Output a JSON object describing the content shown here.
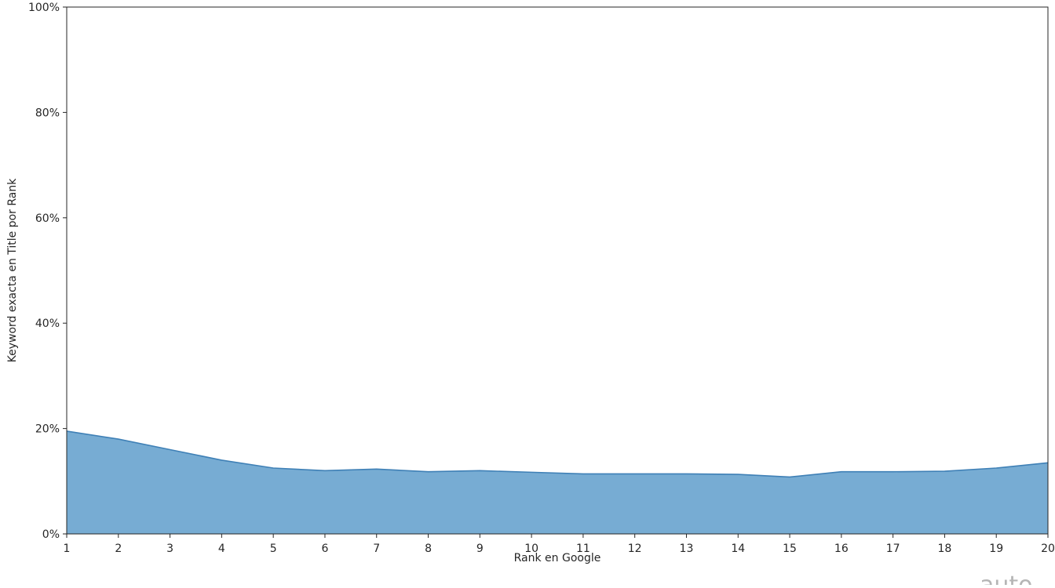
{
  "chart_data": {
    "type": "area",
    "title": "",
    "xlabel": "Rank en Google",
    "ylabel": "Keyword exacta en Title por Rank",
    "x": [
      1,
      2,
      3,
      4,
      5,
      6,
      7,
      8,
      9,
      10,
      11,
      12,
      13,
      14,
      15,
      16,
      17,
      18,
      19,
      20
    ],
    "series": [
      {
        "values": [
          19.5,
          18.0,
          16.0,
          14.0,
          12.5,
          12.0,
          12.3,
          11.8,
          12.0,
          11.7,
          11.4,
          11.4,
          11.4,
          11.3,
          10.8,
          11.8,
          11.8,
          11.9,
          12.5,
          13.5
        ]
      }
    ],
    "xlim": [
      1,
      20
    ],
    "ylim": [
      0,
      100
    ],
    "y_ticks": [
      0,
      20,
      40,
      60,
      80,
      100
    ],
    "y_tick_labels": [
      "0%",
      "20%",
      "40%",
      "60%",
      "80%",
      "100%"
    ],
    "x_tick_labels": [
      "1",
      "2",
      "3",
      "4",
      "5",
      "6",
      "7",
      "8",
      "9",
      "10",
      "11",
      "12",
      "13",
      "14",
      "15",
      "16",
      "17",
      "18",
      "19",
      "20"
    ],
    "grid": false,
    "legend": "none",
    "colors": {
      "fill": "#77acd3",
      "line": "#3f80b6",
      "axis": "#262626"
    }
  },
  "watermark": {
    "text": "auto"
  }
}
